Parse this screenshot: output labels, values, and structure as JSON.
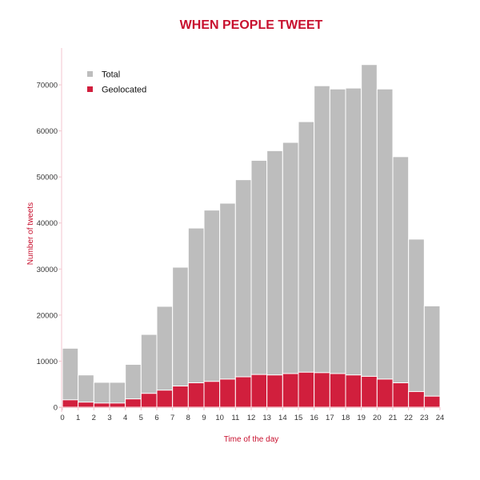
{
  "chart_data": {
    "type": "bar",
    "title": "WHEN PEOPLE TWEET",
    "xlabel": "Time of the day",
    "ylabel": "Number of tweets",
    "x_ticks": [
      "0",
      "1",
      "2",
      "3",
      "4",
      "5",
      "6",
      "7",
      "8",
      "9",
      "10",
      "11",
      "12",
      "13",
      "14",
      "15",
      "16",
      "17",
      "18",
      "19",
      "20",
      "21",
      "22",
      "23",
      "24"
    ],
    "y_ticks": [
      "0",
      "10000",
      "20000",
      "30000",
      "40000",
      "50000",
      "60000",
      "70000"
    ],
    "xlim": [
      0,
      24
    ],
    "ylim": [
      0,
      78000
    ],
    "categories": [
      "0-1",
      "1-2",
      "2-3",
      "3-4",
      "4-5",
      "5-6",
      "6-7",
      "7-8",
      "8-9",
      "9-10",
      "10-11",
      "11-12",
      "12-13",
      "13-14",
      "14-15",
      "15-16",
      "16-17",
      "17-18",
      "18-19",
      "19-20",
      "20-21",
      "21-22",
      "22-23",
      "23-24"
    ],
    "series": [
      {
        "name": "Total",
        "color": "#bdbdbd",
        "values": [
          12800,
          7000,
          5400,
          5400,
          9300,
          15800,
          21900,
          30400,
          38900,
          42800,
          44300,
          49400,
          53600,
          55700,
          57500,
          62000,
          69800,
          69100,
          69300,
          74400,
          69100,
          54400,
          36500,
          22000
        ]
      },
      {
        "name": "Geolocated",
        "color": "#d11f3d",
        "values": [
          1600,
          1100,
          900,
          900,
          1800,
          3000,
          3700,
          4600,
          5300,
          5600,
          6100,
          6600,
          7100,
          7000,
          7300,
          7600,
          7500,
          7300,
          7000,
          6700,
          6100,
          5300,
          3400,
          2400
        ]
      }
    ],
    "legend_position": "top-left",
    "grid": false,
    "colors": {
      "title": "#c8102e",
      "axis_label": "#c8102e",
      "axis_line": "#f3c6cf",
      "tick_label": "#333333",
      "bar_edge": "#ffffff"
    }
  }
}
